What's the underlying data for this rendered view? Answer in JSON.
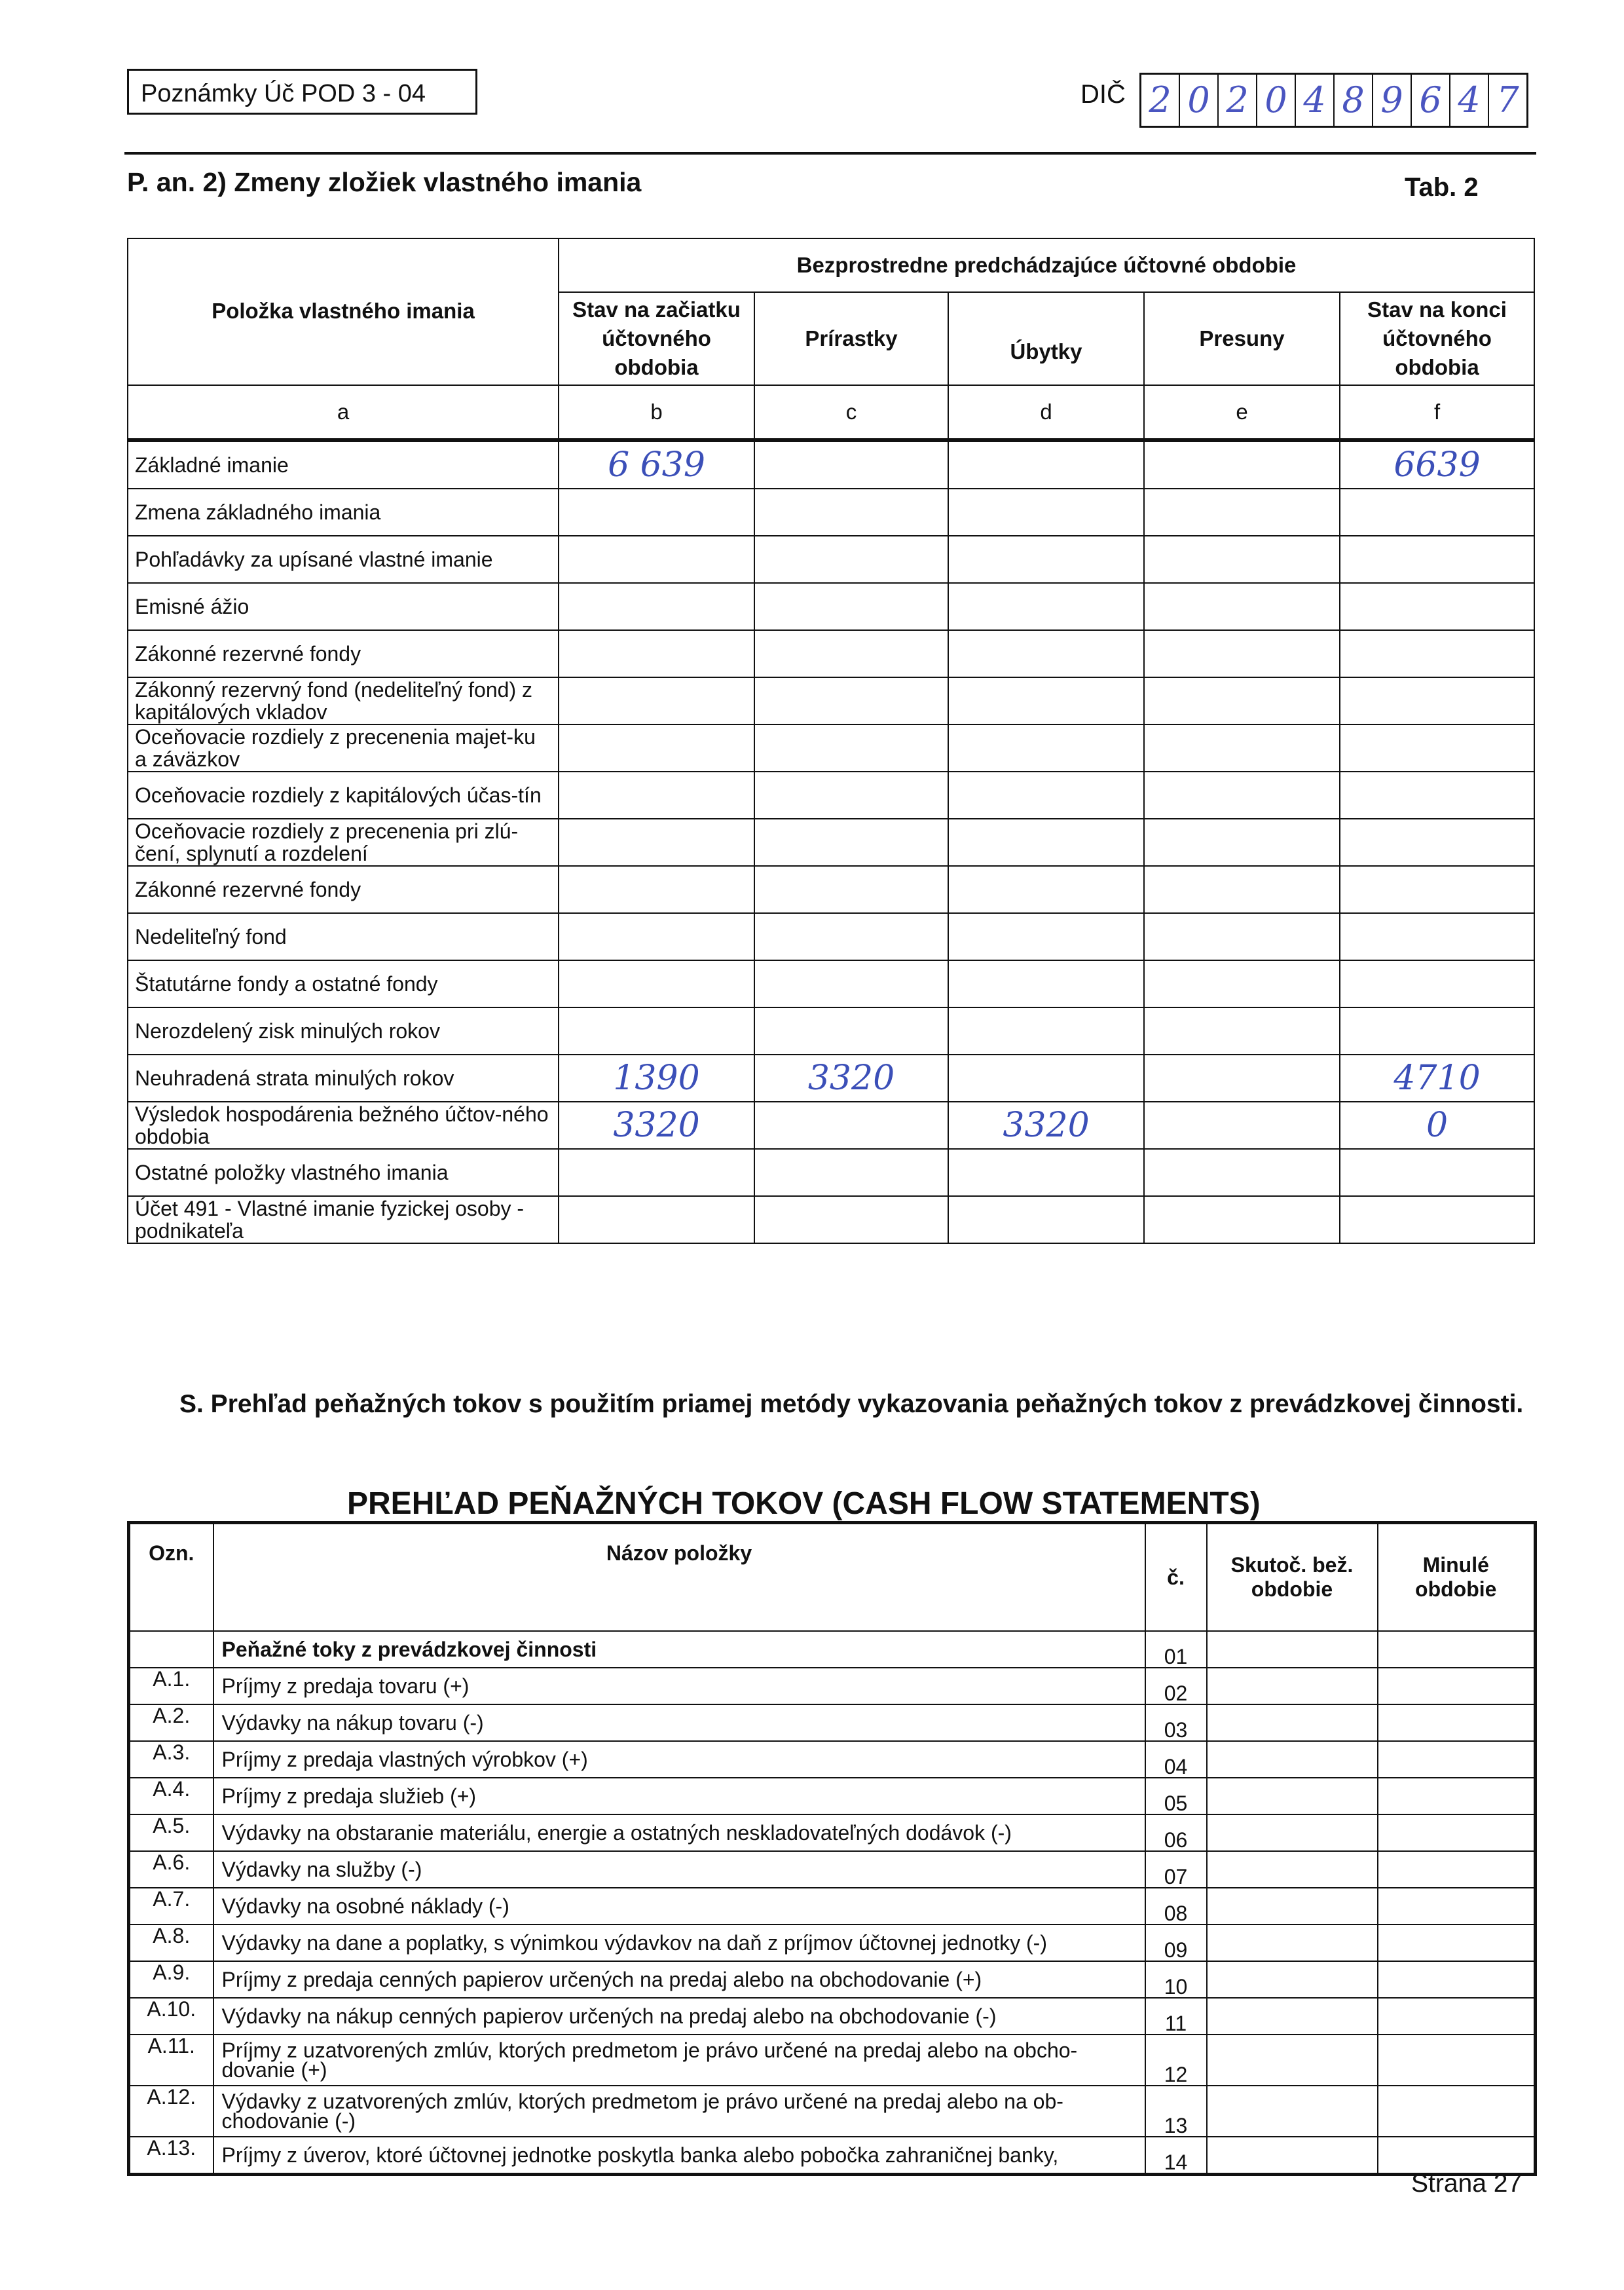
{
  "header": {
    "form_code": "Poznámky Úč POD 3 - 04",
    "dic_label": "DIČ",
    "dic_digits": [
      "2",
      "0",
      "2",
      "0",
      "4",
      "8",
      "9",
      "6",
      "4",
      "7"
    ]
  },
  "section_p": {
    "title": "P. an. 2) Zmeny zložiek vlastného imania",
    "tab_label": "Tab. 2"
  },
  "equity_table": {
    "col_item": "Položka vlastného imania",
    "group_header": "Bezprostredne predchádzajúce účtovné obdobie",
    "columns": [
      "Stav na začiatku účtovného obdobia",
      "Prírastky",
      "Úbytky",
      "Presuny",
      "Stav na konci účtovného obdobia"
    ],
    "letters": [
      "a",
      "b",
      "c",
      "d",
      "e",
      "f"
    ],
    "rows": [
      {
        "label": "Základné imanie",
        "b": "6 639",
        "c": "",
        "d": "",
        "e": "",
        "f": "6639"
      },
      {
        "label": "Zmena základného imania",
        "b": "",
        "c": "",
        "d": "",
        "e": "",
        "f": ""
      },
      {
        "label": "Pohľadávky za upísané vlastné imanie",
        "b": "",
        "c": "",
        "d": "",
        "e": "",
        "f": ""
      },
      {
        "label": "Emisné ážio",
        "b": "",
        "c": "",
        "d": "",
        "e": "",
        "f": ""
      },
      {
        "label": "Zákonné rezervné fondy",
        "b": "",
        "c": "",
        "d": "",
        "e": "",
        "f": ""
      },
      {
        "label": "Zákonný rezervný fond (nedeliteľný fond) z kapitálových vkladov",
        "b": "",
        "c": "",
        "d": "",
        "e": "",
        "f": ""
      },
      {
        "label": "Oceňovacie rozdiely z precenenia majet-ku a záväzkov",
        "b": "",
        "c": "",
        "d": "",
        "e": "",
        "f": ""
      },
      {
        "label": "Oceňovacie rozdiely z kapitálových účas-tín",
        "b": "",
        "c": "",
        "d": "",
        "e": "",
        "f": ""
      },
      {
        "label": "Oceňovacie rozdiely z precenenia pri zlú-čení, splynutí a rozdelení",
        "b": "",
        "c": "",
        "d": "",
        "e": "",
        "f": ""
      },
      {
        "label": "Zákonné rezervné fondy",
        "b": "",
        "c": "",
        "d": "",
        "e": "",
        "f": ""
      },
      {
        "label": "Nedeliteľný fond",
        "b": "",
        "c": "",
        "d": "",
        "e": "",
        "f": ""
      },
      {
        "label": "Štatutárne fondy a ostatné fondy",
        "b": "",
        "c": "",
        "d": "",
        "e": "",
        "f": ""
      },
      {
        "label": "Nerozdelený zisk minulých rokov",
        "b": "",
        "c": "",
        "d": "",
        "e": "",
        "f": ""
      },
      {
        "label": "Neuhradená strata minulých rokov",
        "b": "1390",
        "c": "3320",
        "d": "",
        "e": "",
        "f": "4710"
      },
      {
        "label": "Výsledok hospodárenia bežného účtov-ného obdobia",
        "b": "3320",
        "c": "",
        "d": "3320",
        "e": "",
        "f": "0"
      },
      {
        "label": "Ostatné položky vlastného imania",
        "b": "",
        "c": "",
        "d": "",
        "e": "",
        "f": ""
      },
      {
        "label": "Účet 491 - Vlastné imanie fyzickej osoby - podnikateľa",
        "b": "",
        "c": "",
        "d": "",
        "e": "",
        "f": ""
      }
    ]
  },
  "section_s": {
    "text": "S. Prehľad peňažných tokov  s použitím  priamej metódy  vykazovania peňažných tokov z prevádzkovej činnosti."
  },
  "cashflow": {
    "title": "PREHĽAD PEŇAŽNÝCH TOKOV (CASH FLOW STATEMENTS)",
    "headers": [
      "Ozn.",
      "Názov položky",
      "č.",
      "Skutoč. bež. obdobie",
      "Minulé obdobie"
    ],
    "rows": [
      {
        "ozn": "",
        "name": "Peňažné toky z prevádzkovej činnosti",
        "no": "01",
        "bold": true
      },
      {
        "ozn": "A.1.",
        "name": "Príjmy z predaja tovaru (+)",
        "no": "02"
      },
      {
        "ozn": "A.2.",
        "name": "Výdavky na nákup tovaru (-)",
        "no": "03"
      },
      {
        "ozn": "A.3.",
        "name": "Príjmy z predaja vlastných výrobkov (+)",
        "no": "04"
      },
      {
        "ozn": "A.4.",
        "name": "Príjmy z predaja služieb (+)",
        "no": "05"
      },
      {
        "ozn": "A.5.",
        "name": "Výdavky na obstaranie materiálu, energie a ostatných neskladovateľných dodávok (-)",
        "no": "06"
      },
      {
        "ozn": "A.6.",
        "name": "Výdavky na služby (-)",
        "no": "07"
      },
      {
        "ozn": "A.7.",
        "name": "Výdavky na osobné náklady (-)",
        "no": "08"
      },
      {
        "ozn": "A.8.",
        "name": "Výdavky na dane a poplatky, s výnimkou výdavkov na daň z príjmov účtovnej jednotky (-)",
        "no": "09"
      },
      {
        "ozn": "A.9.",
        "name": "Príjmy z predaja cenných papierov určených na predaj alebo na obchodovanie (+)",
        "no": "10"
      },
      {
        "ozn": "A.10.",
        "name": "Výdavky na nákup cenných papierov určených na predaj alebo na obchodovanie (-)",
        "no": "11"
      },
      {
        "ozn": "A.11.",
        "name": "Príjmy z uzatvorených zmlúv, ktorých predmetom je právo určené na predaj alebo na obcho-dovanie (+)",
        "no": "12"
      },
      {
        "ozn": "A.12.",
        "name": "Výdavky z uzatvorených zmlúv, ktorých predmetom je právo určené na predaj alebo na ob-chodovanie (-)",
        "no": "13"
      },
      {
        "ozn": "A.13.",
        "name": "Príjmy z úverov, ktoré účtovnej jednotke poskytla banka alebo pobočka zahraničnej banky,",
        "no": "14"
      }
    ]
  },
  "footer": {
    "page": "Strana 27"
  }
}
